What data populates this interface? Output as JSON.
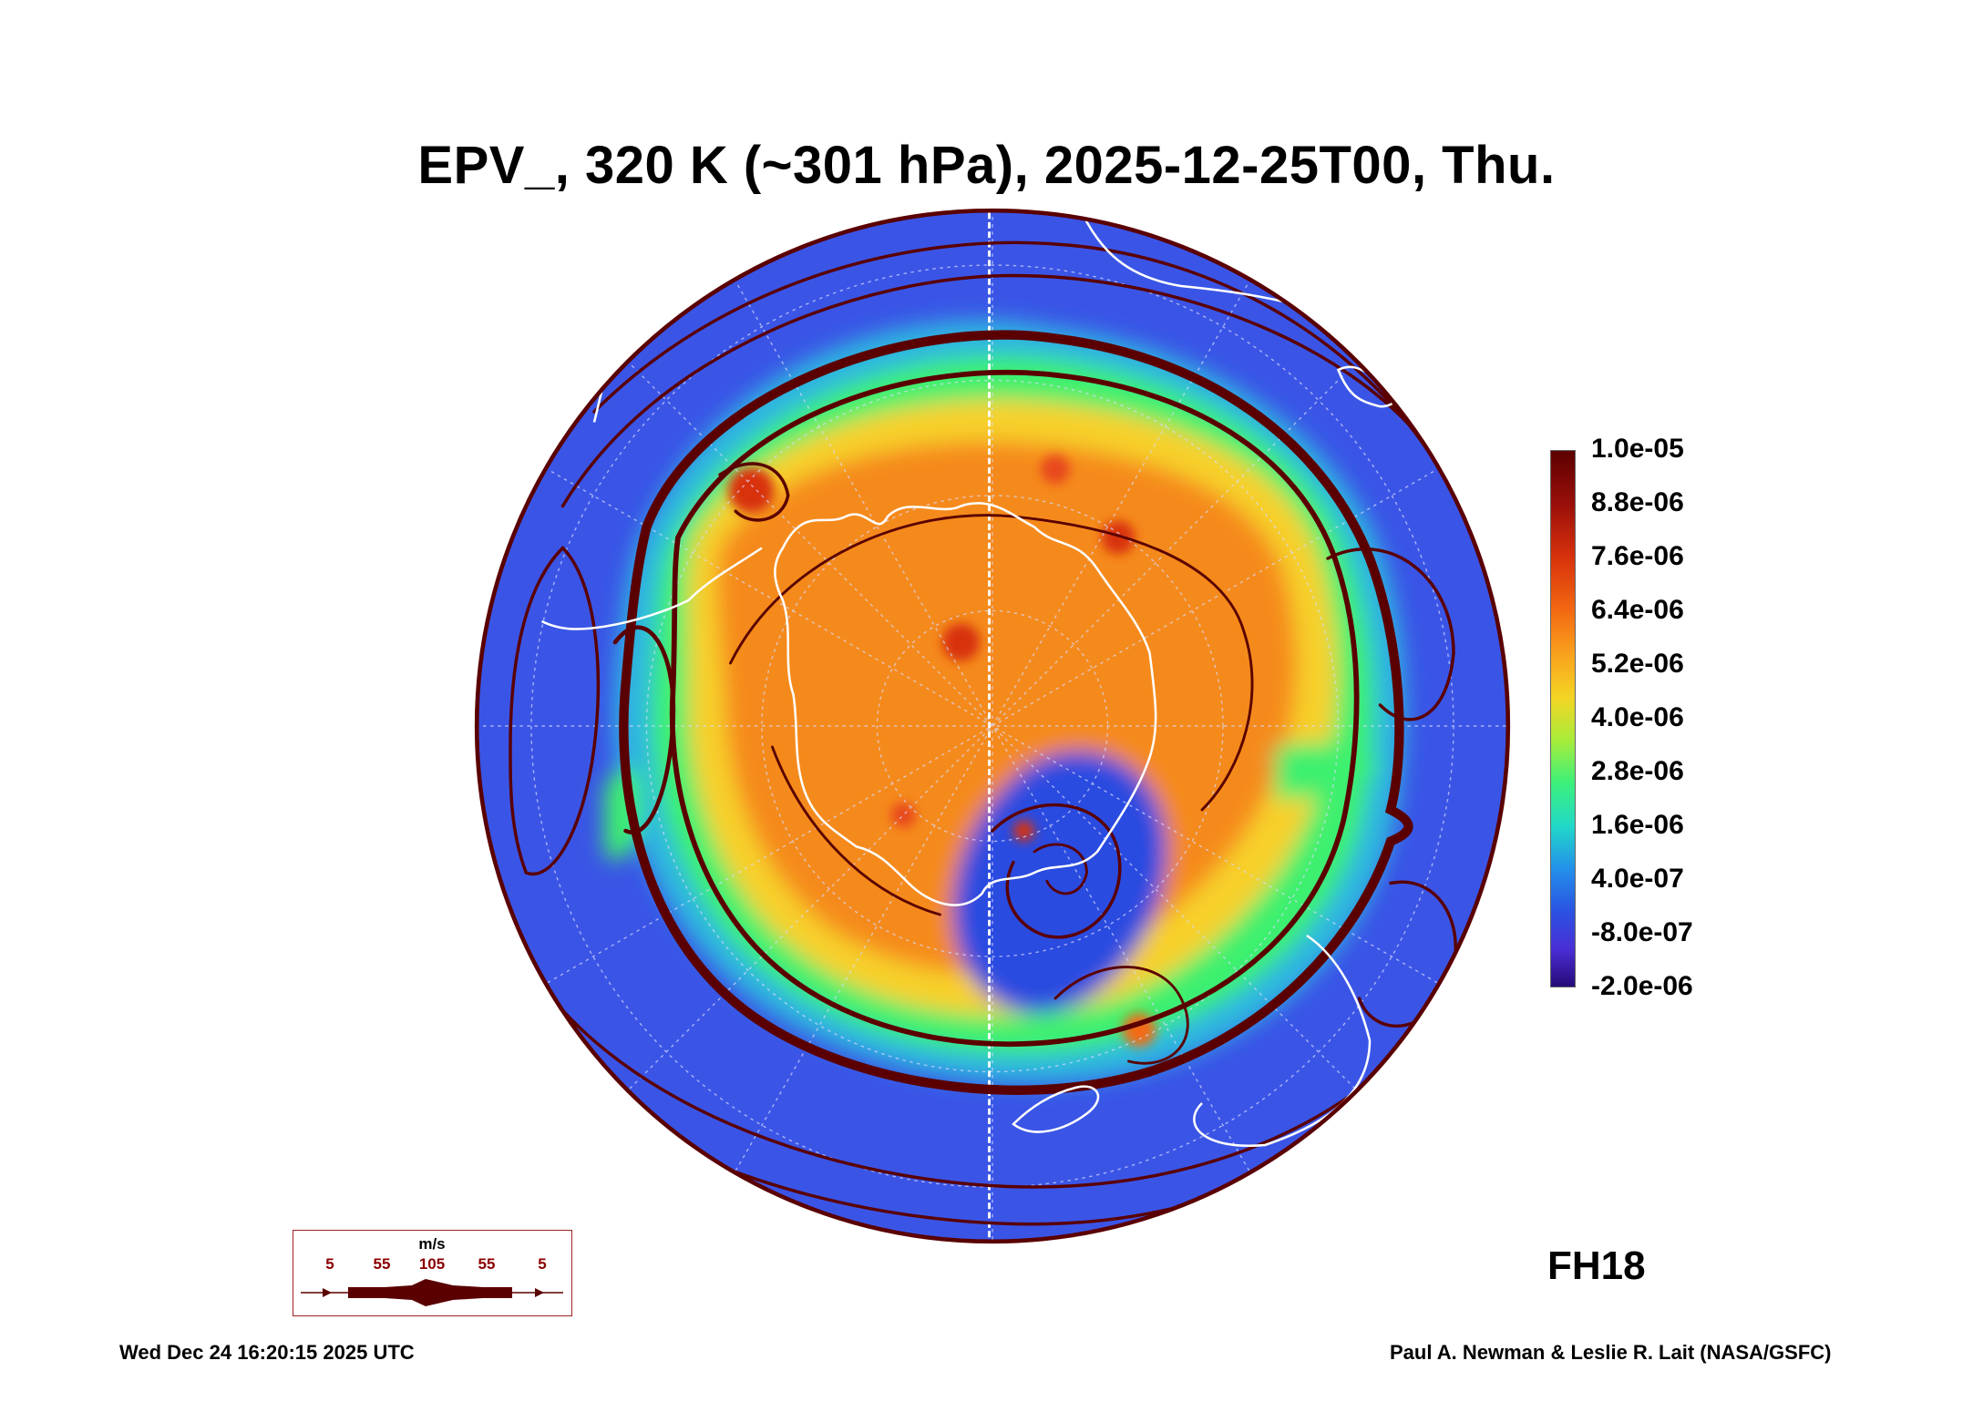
{
  "title": "EPV_, 320 K (~301 hPa), 2025-12-25T00, Thu.",
  "colorbar": {
    "labels": [
      "1.0e-05",
      "8.8e-06",
      "7.6e-06",
      "6.4e-06",
      "5.2e-06",
      "4.0e-06",
      "2.8e-06",
      "1.6e-06",
      "4.0e-07",
      "-8.0e-07",
      "-2.0e-06"
    ],
    "colors": [
      "#5c0000",
      "#9a0f0a",
      "#d8320c",
      "#f36a12",
      "#f9a21d",
      "#f4d424",
      "#a8ec3a",
      "#3cf07a",
      "#22d9c8",
      "#2390ea",
      "#2a52e2",
      "#4a2ed6",
      "#260a78"
    ]
  },
  "forecast_hour": "FH18",
  "wind_legend": {
    "unit": "m/s",
    "speeds": [
      "5",
      "55",
      "105",
      "55",
      "5"
    ]
  },
  "footer": {
    "timestamp": "Wed Dec 24 16:20:15 2025 UTC",
    "credit": "Paul A. Newman & Leslie R. Lait (NASA/GSFC)"
  },
  "map": {
    "projection": "south polar stereographic",
    "field": "ertel potential vorticity",
    "overlays": [
      "streamlines",
      "coastlines",
      "lat-lon gridlines"
    ],
    "streamline_color": "#5a0000",
    "coastline_color": "#ffffff",
    "background_color": "#3a55e6"
  }
}
